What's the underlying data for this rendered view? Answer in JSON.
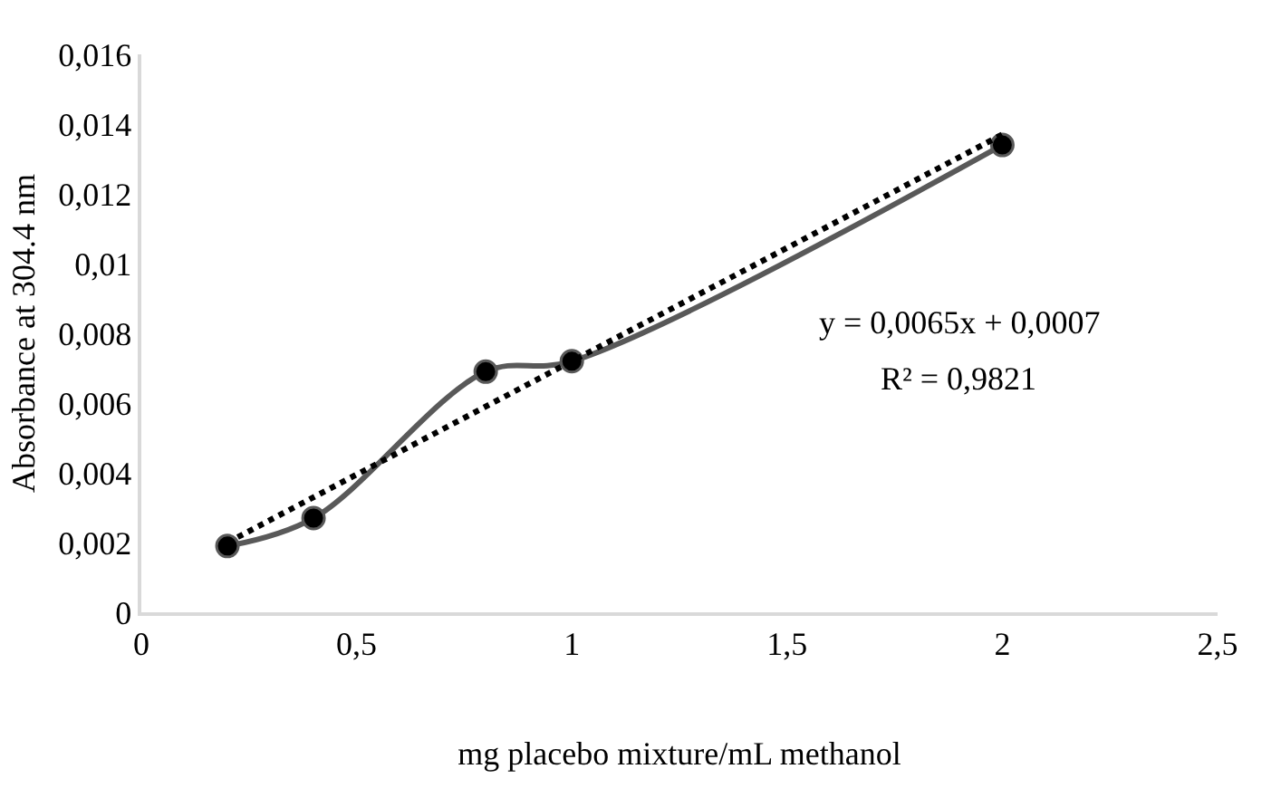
{
  "chart_data": {
    "type": "line",
    "xlabel": "mg placebo mixture/mL methanol",
    "ylabel": "Absorbance at 304.4 nm",
    "series": [
      {
        "color": "#595959",
        "x": [
          0.2,
          0.4,
          0.8,
          1.0,
          2.0
        ],
        "values": [
          0.0019,
          0.0027,
          0.0069,
          0.0072,
          0.0134
        ],
        "marker": "circle",
        "line_style": "solid"
      },
      {
        "color": "#000000",
        "x": [
          0.2,
          2.0
        ],
        "values": [
          0.002,
          0.0137
        ],
        "marker": "none",
        "line_style": "dotted"
      }
    ],
    "annotations": [
      "y = 0,0065x + 0,0007",
      "R² = 0,9821"
    ],
    "xlim": [
      0,
      2.5
    ],
    "xticks": [
      0,
      {
        "value": 0.5,
        "label": "0,5"
      },
      1,
      {
        "value": 1.5,
        "label": "1,5"
      },
      2,
      {
        "value": 2.5,
        "label": "2,5"
      }
    ],
    "ylim": [
      0,
      0.016
    ],
    "yticks": [
      0,
      {
        "value": 0.002,
        "label": "0,002"
      },
      {
        "value": 0.004,
        "label": "0,004"
      },
      {
        "value": 0.006,
        "label": "0,006"
      },
      {
        "value": 0.008,
        "label": "0,008"
      },
      {
        "value": 0.01,
        "label": "0,01"
      },
      {
        "value": 0.012,
        "label": "0,012"
      },
      {
        "value": 0.014,
        "label": "0,014"
      },
      {
        "value": 0.016,
        "label": "0,016"
      }
    ],
    "grid": false
  }
}
